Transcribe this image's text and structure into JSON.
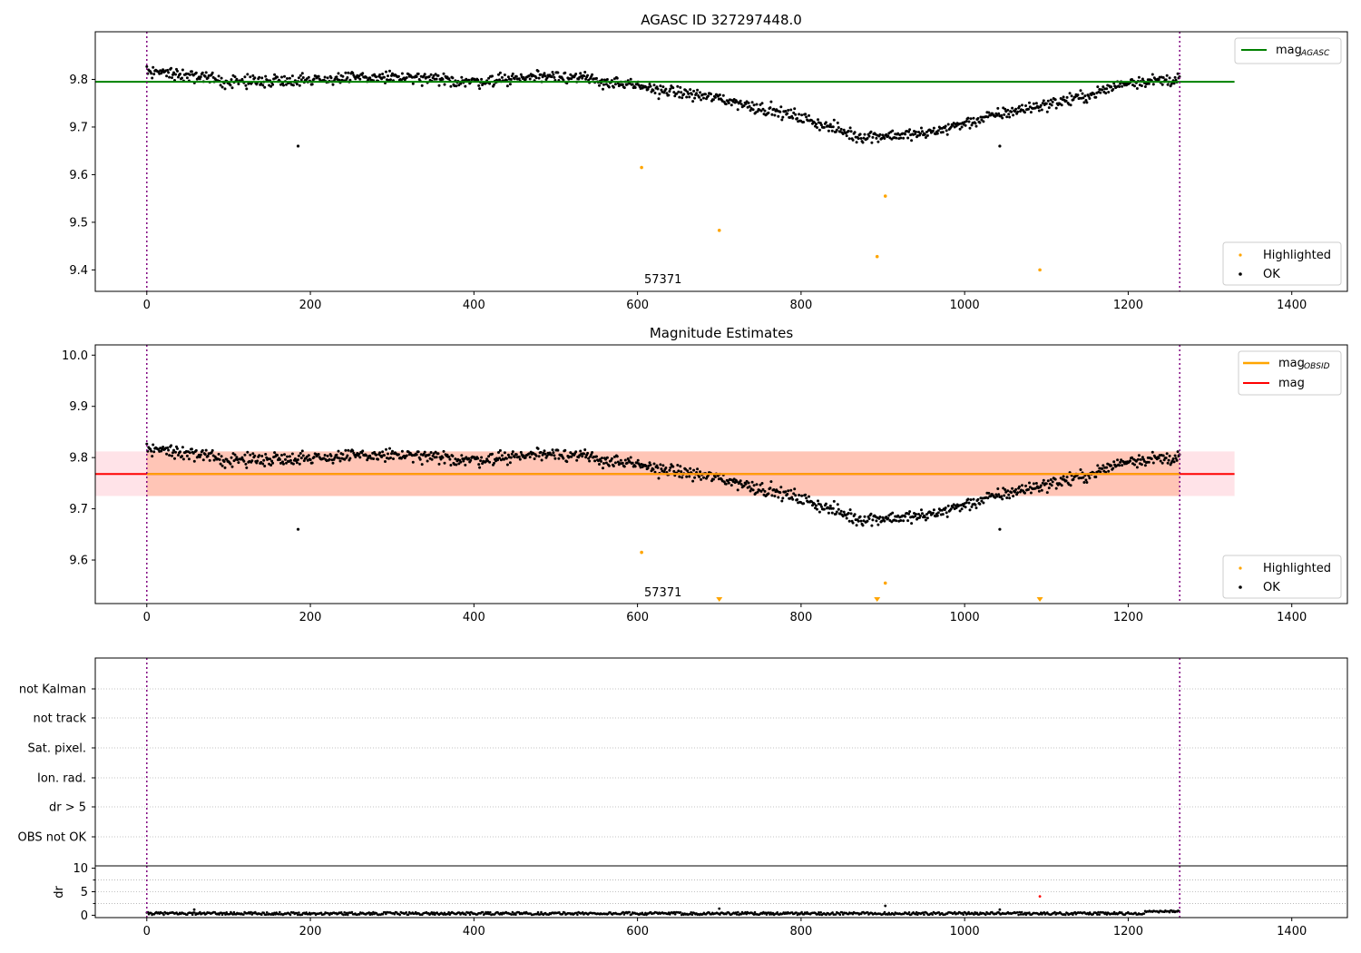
{
  "chart_data": [
    {
      "type": "scatter",
      "title": "AGASC ID 327297448.0",
      "xlim": [
        -63,
        1468
      ],
      "ylim": [
        9.355,
        9.9
      ],
      "xticks": [
        0,
        200,
        400,
        600,
        800,
        1000,
        1200,
        1400
      ],
      "yticks": [
        9.4,
        9.5,
        9.6,
        9.7,
        9.8
      ],
      "obsid_boundaries": [
        0,
        1263
      ],
      "annotations": [
        {
          "text": "57371",
          "x": 605,
          "y": 9.37
        }
      ],
      "hlines": [
        {
          "name": "mag_AGASC",
          "y": 9.795,
          "x_range": [
            -63,
            1330
          ],
          "color": "#008000"
        }
      ],
      "highlighted_points": [
        {
          "x": 605,
          "y": 9.615
        },
        {
          "x": 700,
          "y": 9.483
        },
        {
          "x": 893,
          "y": 9.428
        },
        {
          "x": 903,
          "y": 9.555
        },
        {
          "x": 1092,
          "y": 9.4
        }
      ],
      "ok_outliers": [
        {
          "x": 185,
          "y": 9.66
        },
        {
          "x": 1043,
          "y": 9.66
        }
      ],
      "ok_trend": [
        {
          "x": 0,
          "y": 9.82
        },
        {
          "x": 100,
          "y": 9.795
        },
        {
          "x": 200,
          "y": 9.8
        },
        {
          "x": 300,
          "y": 9.805
        },
        {
          "x": 400,
          "y": 9.795
        },
        {
          "x": 500,
          "y": 9.81
        },
        {
          "x": 600,
          "y": 9.785
        },
        {
          "x": 700,
          "y": 9.76
        },
        {
          "x": 800,
          "y": 9.72
        },
        {
          "x": 870,
          "y": 9.68
        },
        {
          "x": 950,
          "y": 9.685
        },
        {
          "x": 1050,
          "y": 9.73
        },
        {
          "x": 1150,
          "y": 9.765
        },
        {
          "x": 1200,
          "y": 9.795
        },
        {
          "x": 1263,
          "y": 9.8
        }
      ],
      "legend_top": {
        "position": "top-right",
        "entries": [
          {
            "label": "mag",
            "sub": "AGASC",
            "color": "#008000"
          }
        ]
      },
      "legend_bottom": {
        "position": "bottom-right",
        "entries": [
          {
            "label": "Highlighted",
            "color": "#ffa500"
          },
          {
            "label": "OK",
            "color": "#000000"
          }
        ]
      }
    },
    {
      "type": "scatter",
      "title": "Magnitude Estimates",
      "xlim": [
        -63,
        1468
      ],
      "ylim": [
        9.515,
        10.02
      ],
      "xticks": [
        0,
        200,
        400,
        600,
        800,
        1000,
        1200,
        1400
      ],
      "yticks": [
        9.6,
        9.7,
        9.8,
        9.9,
        10.0
      ],
      "obsid_boundaries": [
        0,
        1263
      ],
      "annotations": [
        {
          "text": "57371",
          "x": 605,
          "y": 9.532
        }
      ],
      "hlines": [
        {
          "name": "mag",
          "y": 9.768,
          "x_range": [
            -63,
            1330
          ],
          "color": "#ff0000"
        },
        {
          "name": "mag_OBSID",
          "y": 9.768,
          "x_range": [
            0,
            1263
          ],
          "color": "#ffa500"
        }
      ],
      "bands": [
        {
          "name": "mag band",
          "y": [
            9.725,
            9.812
          ],
          "x_range": [
            -63,
            1330
          ],
          "color": "#ffc0cb"
        },
        {
          "name": "mag_OBSID band",
          "y": [
            9.725,
            9.812
          ],
          "x_range": [
            0,
            1263
          ],
          "color": "#ffa07a"
        }
      ],
      "highlighted_points": [
        {
          "x": 605,
          "y": 9.615
        },
        {
          "x": 903,
          "y": 9.555
        }
      ],
      "below_range_markers": [
        {
          "x": 700
        },
        {
          "x": 893
        },
        {
          "x": 1092
        }
      ],
      "ok_outliers": [
        {
          "x": 185,
          "y": 9.66
        },
        {
          "x": 1043,
          "y": 9.66
        }
      ],
      "ok_trend": [
        {
          "x": 0,
          "y": 9.82
        },
        {
          "x": 100,
          "y": 9.795
        },
        {
          "x": 200,
          "y": 9.8
        },
        {
          "x": 300,
          "y": 9.805
        },
        {
          "x": 400,
          "y": 9.795
        },
        {
          "x": 500,
          "y": 9.81
        },
        {
          "x": 600,
          "y": 9.785
        },
        {
          "x": 700,
          "y": 9.76
        },
        {
          "x": 800,
          "y": 9.72
        },
        {
          "x": 870,
          "y": 9.68
        },
        {
          "x": 950,
          "y": 9.685
        },
        {
          "x": 1050,
          "y": 9.73
        },
        {
          "x": 1150,
          "y": 9.765
        },
        {
          "x": 1200,
          "y": 9.795
        },
        {
          "x": 1263,
          "y": 9.8
        }
      ],
      "legend_top": {
        "position": "top-right",
        "entries": [
          {
            "label": "mag",
            "sub": "OBSID",
            "color": "#ffa500"
          },
          {
            "label": "mag",
            "sub": "",
            "color": "#ff0000"
          }
        ]
      },
      "legend_bottom": {
        "position": "bottom-right",
        "entries": [
          {
            "label": "Highlighted",
            "color": "#ffa500"
          },
          {
            "label": "OK",
            "color": "#000000"
          }
        ]
      }
    },
    {
      "type": "table",
      "title": "",
      "xlim": [
        -63,
        1468
      ],
      "flag_rows": [
        "not Kalman",
        "not track",
        "Sat. pixel.",
        "Ion. rad.",
        "dr > 5",
        "OBS not OK"
      ],
      "obsid_boundaries": [
        0,
        1263
      ],
      "flags_set": []
    },
    {
      "type": "scatter",
      "title": "",
      "ylabel": "dr",
      "xlim": [
        -63,
        1468
      ],
      "ylim": [
        -0.5,
        10.5
      ],
      "xticks": [
        0,
        200,
        400,
        600,
        800,
        1000,
        1200,
        1400
      ],
      "yticks": [
        0,
        5,
        10
      ],
      "obsid_boundaries": [
        0,
        1263
      ],
      "ok_band": {
        "x_range": [
          0,
          1263
        ],
        "typical_dr": [
          0.1,
          0.9
        ]
      },
      "spikes": [
        {
          "x": 58,
          "y": 1.2
        },
        {
          "x": 700,
          "y": 1.4
        },
        {
          "x": 903,
          "y": 2.0
        },
        {
          "x": 1043,
          "y": 1.2
        }
      ],
      "highlighted_points": [
        {
          "x": 1092,
          "y": 4.0,
          "color": "#ff0000"
        }
      ]
    }
  ]
}
